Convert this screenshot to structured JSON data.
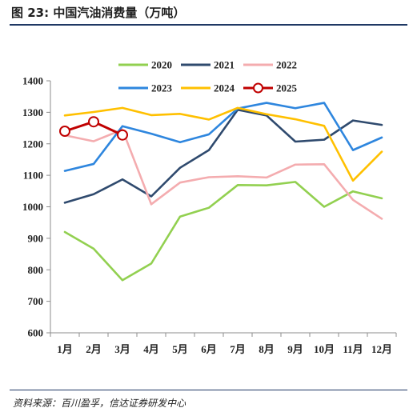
{
  "figure": {
    "title": "图 23:  中国汽油消费量（万吨）",
    "source": "资料来源：百川盈孚，信达证券研发中心"
  },
  "chart_data": {
    "type": "line",
    "title": "",
    "xlabel": "",
    "ylabel": "",
    "categories": [
      "1月",
      "2月",
      "3月",
      "4月",
      "5月",
      "6月",
      "7月",
      "8月",
      "9月",
      "10月",
      "11月",
      "12月"
    ],
    "ylim": [
      600,
      1400
    ],
    "yticks": [
      600,
      700,
      800,
      900,
      1000,
      1100,
      1200,
      1300,
      1400
    ],
    "grid": false,
    "legend_position": "top",
    "series": [
      {
        "name": "2020",
        "color": "#92d050",
        "marker": "none",
        "values": [
          920,
          867,
          767,
          820,
          969,
          997,
          1069,
          1068,
          1079,
          1000,
          1049,
          1027
        ]
      },
      {
        "name": "2021",
        "color": "#2f4a6e",
        "marker": "none",
        "values": [
          1013,
          1040,
          1087,
          1033,
          1124,
          1180,
          1308,
          1290,
          1207,
          1213,
          1274,
          1260
        ]
      },
      {
        "name": "2022",
        "color": "#f4acaf",
        "marker": "none",
        "values": [
          1227,
          1208,
          1245,
          1008,
          1077,
          1094,
          1097,
          1093,
          1134,
          1135,
          1022,
          962
        ]
      },
      {
        "name": "2023",
        "color": "#2e86de",
        "marker": "none",
        "values": [
          1114,
          1136,
          1256,
          1232,
          1205,
          1230,
          1312,
          1330,
          1313,
          1330,
          1180,
          1220
        ]
      },
      {
        "name": "2024",
        "color": "#ffc000",
        "marker": "none",
        "values": [
          1290,
          1301,
          1314,
          1291,
          1295,
          1277,
          1314,
          1294,
          1278,
          1257,
          1083,
          1175
        ]
      },
      {
        "name": "2025",
        "color": "#c00000",
        "marker": "circle",
        "values": [
          1240,
          1270,
          1228,
          null,
          null,
          null,
          null,
          null,
          null,
          null,
          null,
          null
        ]
      }
    ]
  }
}
